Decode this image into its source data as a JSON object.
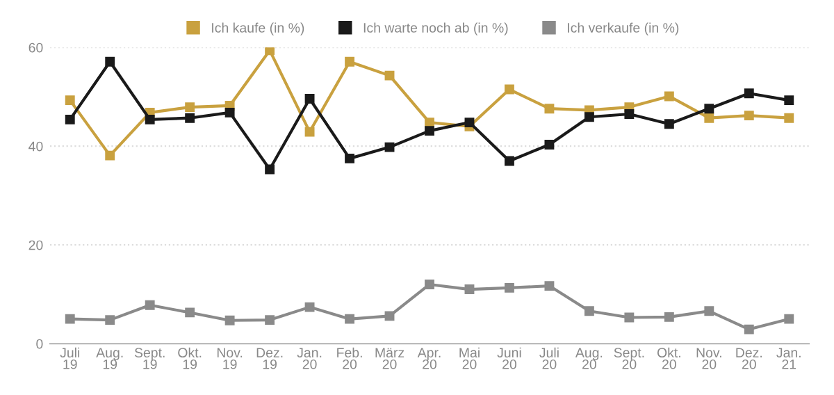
{
  "chart_data": {
    "type": "line",
    "categories": [
      "Juli\n19",
      "Aug.\n19",
      "Sept.\n19",
      "Okt.\n19",
      "Nov.\n19",
      "Dez.\n19",
      "Jan.\n20",
      "Feb.\n20",
      "März\n20",
      "Apr.\n20",
      "Mai\n20",
      "Juni\n20",
      "Juli\n20",
      "Aug.\n20",
      "Sept.\n20",
      "Okt.\n20",
      "Nov.\n20",
      "Dez.\n20",
      "Jan.\n21"
    ],
    "series": [
      {
        "name": "Ich kaufe (in %)",
        "color": "#c9a13f",
        "values": [
          49.3,
          38.1,
          46.8,
          47.9,
          48.2,
          59.4,
          42.9,
          57.1,
          54.3,
          44.8,
          44.0,
          51.5,
          47.6,
          47.3,
          47.9,
          50.1,
          45.7,
          46.2,
          45.7
        ]
      },
      {
        "name": "Ich warte noch ab (in %)",
        "color": "#1a1a1a",
        "values": [
          45.4,
          57.1,
          45.4,
          45.7,
          46.8,
          35.3,
          49.6,
          37.5,
          39.8,
          43.1,
          44.8,
          37.0,
          40.3,
          45.9,
          46.5,
          44.5,
          47.6,
          50.7,
          49.3
        ]
      },
      {
        "name": "Ich verkaufe (in %)",
        "color": "#8a8a8a",
        "values": [
          5.0,
          4.8,
          7.8,
          6.3,
          4.7,
          4.8,
          7.4,
          5.0,
          5.6,
          12.0,
          11.0,
          11.3,
          11.7,
          6.6,
          5.3,
          5.4,
          6.6,
          2.9,
          5.0
        ]
      }
    ],
    "ylim": [
      0,
      60
    ],
    "yticks": [
      0,
      20,
      40,
      60
    ],
    "grid": "y",
    "legend": "top",
    "marker": "square",
    "line_style": "solid"
  }
}
